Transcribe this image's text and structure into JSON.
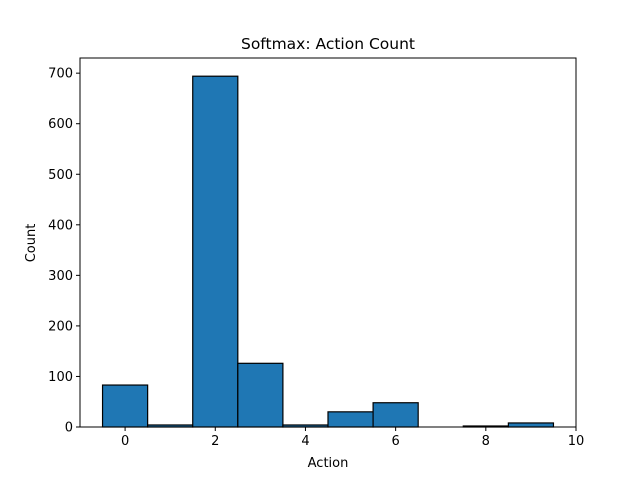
{
  "chart_data": {
    "type": "bar",
    "title": "Softmax: Action Count",
    "xlabel": "Action",
    "ylabel": "Count",
    "x": [
      0,
      1,
      2,
      3,
      4,
      5,
      6,
      7,
      8,
      9
    ],
    "values": [
      83,
      4,
      694,
      126,
      4,
      30,
      48,
      0,
      2,
      8
    ],
    "bar_width": 1,
    "xlim": [
      -1,
      10
    ],
    "ylim": [
      0,
      730
    ],
    "xticks": [
      "0",
      "2",
      "4",
      "6",
      "8",
      "10"
    ],
    "yticks": [
      "0",
      "100",
      "200",
      "300",
      "400",
      "500",
      "600",
      "700"
    ],
    "grid": false,
    "legend": "none",
    "bar_color": "#1f77b4",
    "edge_color": "#000000"
  }
}
